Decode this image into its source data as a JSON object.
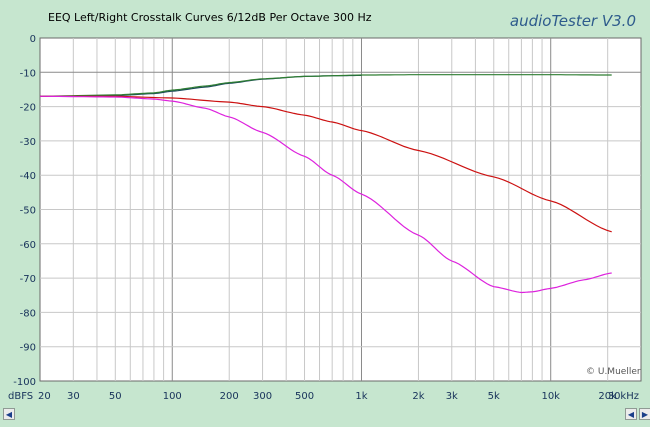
{
  "window": {
    "title": "EEQ Left/Right Crosstalk Curves 6/12dB Per Octave 300 Hz",
    "brand": "audioTester  V3.0",
    "credit": "© U.Mueller"
  },
  "chart_data": {
    "type": "line",
    "title": "EEQ Left/Right Crosstalk Curves 6/12dB Per Octave 300 Hz",
    "x_scale": "log",
    "xlim": [
      20,
      30000
    ],
    "ylim": [
      -100,
      0
    ],
    "grid": true,
    "ylabel": "dBFS",
    "xlabel": "",
    "x_tick_values": [
      20,
      30,
      50,
      100,
      200,
      300,
      500,
      1000,
      2000,
      3000,
      5000,
      10000,
      20000,
      30000
    ],
    "x_tick_labels": [
      "20",
      "30",
      "50",
      "100",
      "200",
      "300",
      "500",
      "1k",
      "2k",
      "3k",
      "5k",
      "10k",
      "20k",
      "30kHz"
    ],
    "y_tick_values": [
      0,
      -10,
      -20,
      -30,
      -40,
      -50,
      -60,
      -70,
      -80,
      -90,
      -100
    ],
    "y_tick_labels": [
      "0",
      "-10",
      "-20",
      "-30",
      "-40",
      "-50",
      "-60",
      "-70",
      "-80",
      "-90",
      "-100"
    ],
    "series": [
      {
        "color": "#1a4a5a",
        "x": [
          20,
          50,
          80,
          100,
          150,
          200,
          300,
          500,
          700,
          1000
        ],
        "y": [
          -17,
          -16.8,
          -16.2,
          -15.5,
          -14.3,
          -13.2,
          -12.0,
          -11.2,
          -11.0,
          -10.9
        ]
      },
      {
        "color": "#2e7d32",
        "x": [
          20,
          50,
          80,
          100,
          150,
          200,
          300,
          500,
          1000,
          2000,
          5000,
          10000,
          21000
        ],
        "y": [
          -17,
          -16.6,
          -16.0,
          -15.2,
          -14.0,
          -13.0,
          -11.9,
          -11.2,
          -10.8,
          -10.7,
          -10.7,
          -10.7,
          -10.8
        ]
      },
      {
        "color": "#cc1111",
        "x": [
          20,
          50,
          100,
          200,
          300,
          500,
          700,
          1000,
          2000,
          5000,
          10000,
          21000
        ],
        "y": [
          -17,
          -17,
          -17.5,
          -18.7,
          -20.0,
          -22.5,
          -24.5,
          -27.0,
          -32.8,
          -40.5,
          -47.5,
          -56.5
        ]
      },
      {
        "color": "#dd22dd",
        "x": [
          20,
          50,
          80,
          100,
          150,
          200,
          300,
          500,
          700,
          1000,
          2000,
          3000,
          5000,
          7000,
          8000,
          10000,
          15000,
          21000
        ],
        "y": [
          -17,
          -17.2,
          -17.8,
          -18.4,
          -20.5,
          -23.0,
          -27.5,
          -34.5,
          -40.0,
          -45.5,
          -57.5,
          -65.0,
          -72.5,
          -74.2,
          -74.0,
          -73.0,
          -70.5,
          -68.5
        ]
      }
    ]
  }
}
